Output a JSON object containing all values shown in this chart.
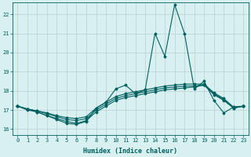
{
  "xlabel": "Humidex (Indice chaleur)",
  "bg_color": "#d8f0f0",
  "line_color": "#006060",
  "grid_color": "#b8d0d0",
  "xlim": [
    -0.5,
    23.5
  ],
  "ylim": [
    15.7,
    22.6
  ],
  "xticks": [
    0,
    1,
    2,
    3,
    4,
    5,
    6,
    7,
    8,
    9,
    10,
    11,
    12,
    13,
    14,
    15,
    16,
    17,
    18,
    19,
    20,
    21,
    22,
    23
  ],
  "yticks": [
    16,
    17,
    18,
    19,
    20,
    21,
    22
  ],
  "series": [
    [
      17.2,
      17.0,
      16.9,
      16.7,
      16.55,
      16.4,
      16.3,
      16.45,
      16.9,
      17.2,
      17.5,
      17.65,
      17.75,
      17.85,
      17.95,
      18.05,
      18.1,
      18.15,
      18.2,
      18.3,
      17.8,
      17.5,
      17.1,
      17.2
    ],
    [
      17.2,
      17.05,
      16.95,
      16.8,
      16.65,
      16.5,
      16.45,
      16.55,
      17.0,
      17.3,
      17.6,
      17.75,
      17.85,
      17.95,
      18.05,
      18.15,
      18.2,
      18.25,
      18.25,
      18.3,
      17.85,
      17.55,
      17.1,
      17.2
    ],
    [
      17.2,
      17.05,
      16.95,
      16.85,
      16.7,
      16.6,
      16.55,
      16.65,
      17.1,
      17.4,
      17.7,
      17.85,
      17.95,
      18.05,
      18.15,
      18.25,
      18.3,
      18.35,
      18.35,
      18.35,
      17.9,
      17.6,
      17.15,
      17.2
    ],
    [
      17.2,
      17.05,
      16.9,
      16.7,
      16.5,
      16.3,
      16.25,
      16.4,
      17.1,
      17.4,
      18.1,
      18.3,
      17.85,
      18.05,
      21.0,
      19.8,
      22.5,
      21.0,
      18.1,
      18.5,
      17.5,
      16.85,
      17.15,
      17.2
    ]
  ]
}
